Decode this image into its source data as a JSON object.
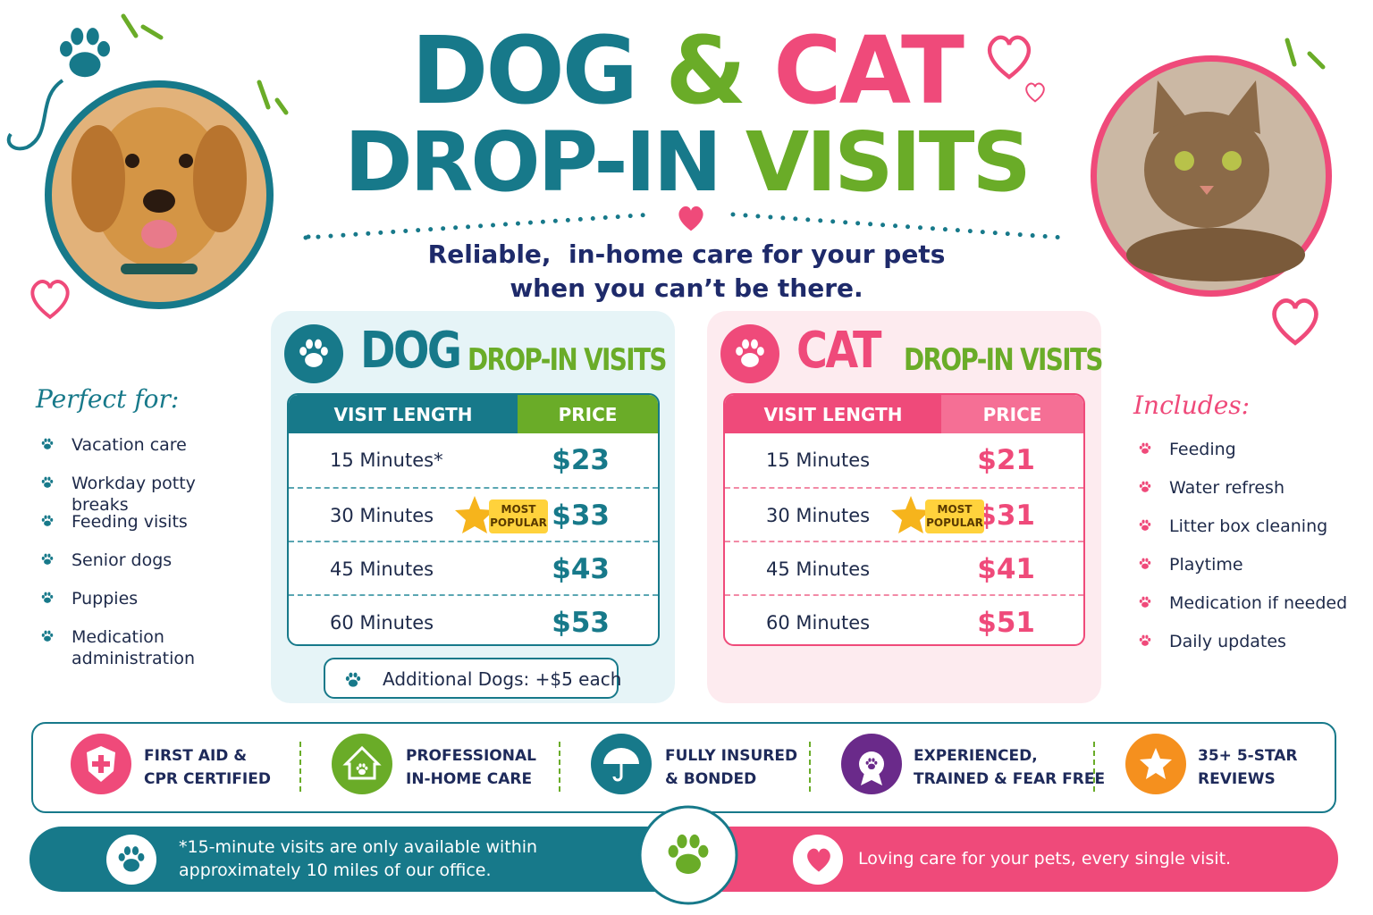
{
  "title": {
    "line1": [
      "DOG",
      "&",
      "CAT"
    ],
    "line2": [
      "DROP-IN",
      "VISITS"
    ]
  },
  "subtitle": [
    "Reliable,  in-home care for your pets",
    "when you can’t be there."
  ],
  "perfect_for": {
    "title": "Perfect for:",
    "items": [
      "Vacation care",
      "Workday potty breaks",
      "Feeding visits",
      "Senior dogs",
      "Puppies",
      "Medication administration"
    ]
  },
  "includes": {
    "title": "Includes:",
    "items": [
      "Feeding",
      "Water refresh",
      "Litter box cleaning",
      "Playtime",
      "Medication if needed",
      "Daily updates"
    ]
  },
  "dog_pricing": {
    "heading": "DOG",
    "subheading": "DROP-IN VISITS",
    "columns": [
      "VISIT LENGTH",
      "PRICE"
    ],
    "rows": [
      [
        "15 Minutes*",
        "$23"
      ],
      [
        "30 Minutes",
        "$33"
      ],
      [
        "45 Minutes",
        "$43"
      ],
      [
        "60 Minutes",
        "$53"
      ]
    ],
    "badge": "MOST POPULAR",
    "note": "Additional Dogs: +$5 each"
  },
  "cat_pricing": {
    "heading": "CAT",
    "subheading": "DROP-IN VISITS",
    "columns": [
      "VISIT LENGTH",
      "PRICE"
    ],
    "rows": [
      [
        "15 Minutes",
        "$21"
      ],
      [
        "30 Minutes",
        "$31"
      ],
      [
        "45 Minutes",
        "$41"
      ],
      [
        "60 Minutes",
        "$51"
      ]
    ],
    "badge": "MOST POPULAR"
  },
  "features": [
    {
      "lines": [
        "FIRST AID &",
        "CPR CERTIFIED"
      ]
    },
    {
      "lines": [
        "PROFESSIONAL",
        "IN-HOME CARE"
      ]
    },
    {
      "lines": [
        "FULLY INSURED",
        "& BONDED"
      ]
    },
    {
      "lines": [
        "EXPERIENCED,",
        "TRAINED & FEAR FREE"
      ]
    },
    {
      "lines": [
        "35+ 5-STAR",
        "REVIEWS"
      ]
    }
  ],
  "footer": {
    "note": [
      "*15-minute visits are only available within",
      "approximately 10 miles of our office."
    ],
    "tagline": "Loving care for your pets, every single visit."
  }
}
